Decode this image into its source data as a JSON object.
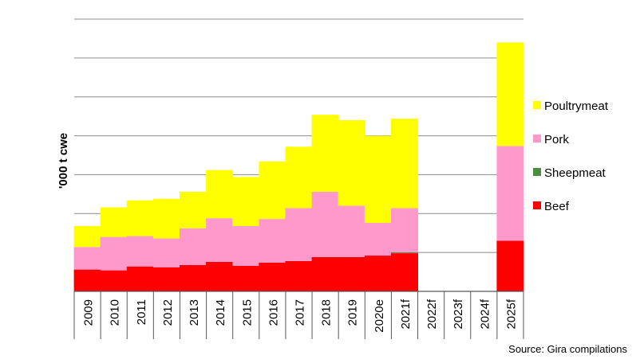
{
  "chart_data": {
    "type": "bar",
    "stacked": true,
    "title": "",
    "xlabel": "",
    "ylabel": "'000 t cwe",
    "categories": [
      "2009",
      "2010",
      "2011",
      "2012",
      "2013",
      "2014",
      "2015",
      "2016",
      "2017",
      "2018",
      "2019",
      "2020e",
      "2021f",
      "2022f",
      "2023f",
      "2024f",
      "2025f"
    ],
    "series": [
      {
        "name": "Beef",
        "color": "#ff0000",
        "values": [
          28,
          27,
          32,
          31,
          34,
          38,
          33,
          37,
          39,
          44,
          44,
          46,
          49,
          null,
          null,
          null,
          65
        ]
      },
      {
        "name": "Sheepmeat",
        "color": "#4a8c3a",
        "values": [
          0,
          0,
          0,
          0,
          0,
          0,
          0,
          0,
          0,
          0,
          0,
          0,
          1,
          null,
          null,
          null,
          0
        ]
      },
      {
        "name": "Pork",
        "color": "#ff99cc",
        "values": [
          29,
          43,
          39,
          37,
          47,
          56,
          51,
          56,
          68,
          84,
          66,
          42,
          57,
          null,
          null,
          null,
          122
        ]
      },
      {
        "name": "Poultrymeat",
        "color": "#ffff00",
        "values": [
          27,
          38,
          46,
          51,
          47,
          62,
          63,
          74,
          79,
          99,
          110,
          112,
          115,
          null,
          null,
          null,
          133
        ]
      }
    ],
    "ylim": [
      0,
      350
    ],
    "grid": true,
    "legend_position": "right",
    "legend_order": [
      "Poultrymeat",
      "Pork",
      "Sheepmeat",
      "Beef"
    ],
    "source_note": "Source: Gira compilations"
  }
}
